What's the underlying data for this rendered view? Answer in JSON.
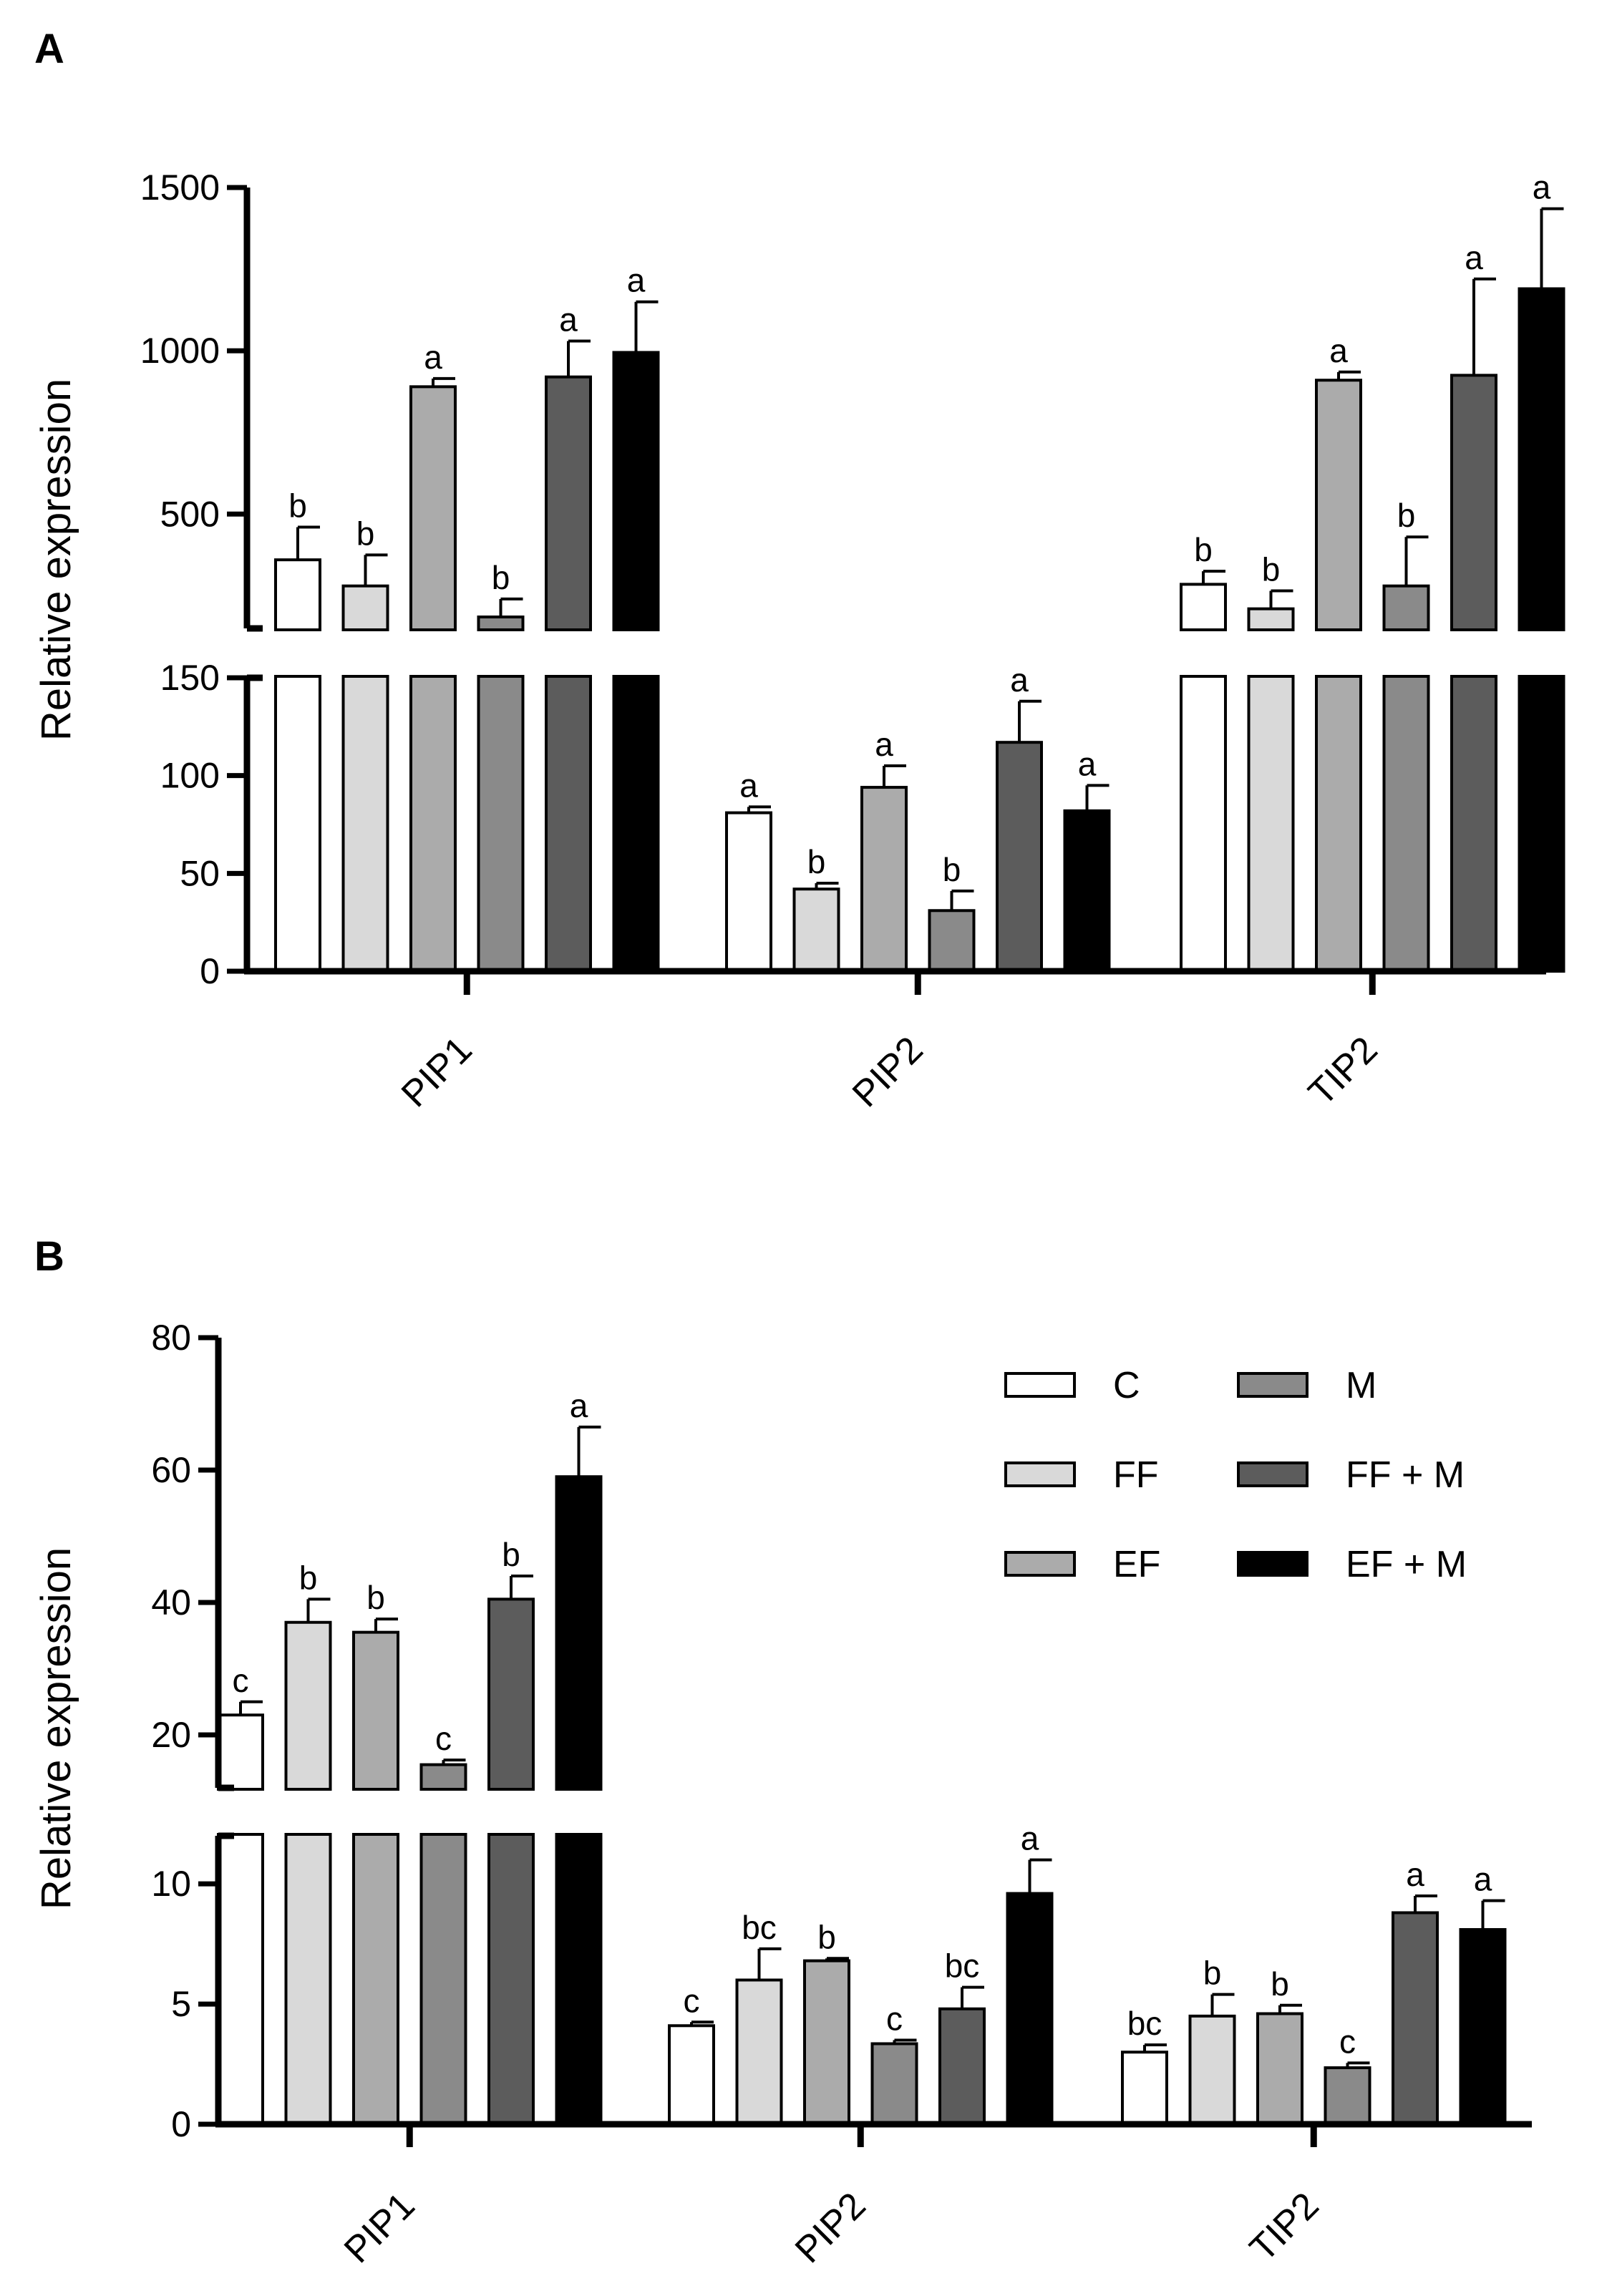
{
  "chart_data": [
    {
      "type": "bar",
      "panel": "A",
      "ylabel": "Relative expression",
      "categories": [
        "PIP1",
        "PIP2",
        "TIP2"
      ],
      "axis_break": true,
      "upper_ylim": [
        150,
        1500
      ],
      "upper_ticks": [
        500,
        1000,
        1500
      ],
      "lower_ylim": [
        0,
        150
      ],
      "lower_ticks": [
        0,
        50,
        100,
        150
      ],
      "series": [
        {
          "name": "C",
          "color": "#ffffff",
          "values": [
            360,
            81,
            285
          ],
          "errors": [
            100,
            3,
            40
          ],
          "letters": [
            "b",
            "a",
            "b"
          ]
        },
        {
          "name": "FF",
          "color": "#d9d9d9",
          "values": [
            280,
            42,
            210
          ],
          "errors": [
            95,
            3,
            55
          ],
          "letters": [
            "b",
            "b",
            "b"
          ]
        },
        {
          "name": "EF",
          "color": "#ababab",
          "values": [
            890,
            94,
            910
          ],
          "errors": [
            25,
            11,
            25
          ],
          "letters": [
            "a",
            "a",
            "a"
          ]
        },
        {
          "name": "M",
          "color": "#8a8a8a",
          "values": [
            185,
            31,
            280
          ],
          "errors": [
            55,
            10,
            150
          ],
          "letters": [
            "b",
            "b",
            "b"
          ]
        },
        {
          "name": "FF + M",
          "color": "#5c5c5c",
          "values": [
            920,
            117,
            925
          ],
          "errors": [
            110,
            21,
            295
          ],
          "letters": [
            "a",
            "a",
            "a"
          ]
        },
        {
          "name": "EF + M",
          "color": "#000000",
          "values": [
            995,
            82,
            1190
          ],
          "errors": [
            155,
            13,
            245
          ],
          "letters": [
            "a",
            "a",
            "a"
          ]
        }
      ]
    },
    {
      "type": "bar",
      "panel": "B",
      "ylabel": "Relative expression",
      "categories": [
        "PIP1",
        "PIP2",
        "TIP2"
      ],
      "axis_break": true,
      "upper_ylim": [
        12,
        80
      ],
      "upper_ticks": [
        20,
        40,
        60,
        80
      ],
      "lower_ylim": [
        0,
        12
      ],
      "lower_ticks": [
        0,
        5,
        10
      ],
      "series": [
        {
          "name": "C",
          "color": "#ffffff",
          "values": [
            23,
            4.1,
            3.0
          ],
          "errors": [
            2,
            0.15,
            0.3
          ],
          "letters": [
            "c",
            "c",
            "bc"
          ]
        },
        {
          "name": "FF",
          "color": "#d9d9d9",
          "values": [
            37,
            6.0,
            4.5
          ],
          "errors": [
            3.5,
            1.3,
            0.9
          ],
          "letters": [
            "b",
            "bc",
            "b"
          ]
        },
        {
          "name": "EF",
          "color": "#ababab",
          "values": [
            35.5,
            6.8,
            4.6
          ],
          "errors": [
            2,
            0.1,
            0.35
          ],
          "letters": [
            "b",
            "b",
            "b"
          ]
        },
        {
          "name": "M",
          "color": "#8a8a8a",
          "values": [
            15.5,
            3.35,
            2.35
          ],
          "errors": [
            0.7,
            0.15,
            0.2
          ],
          "letters": [
            "c",
            "c",
            "c"
          ]
        },
        {
          "name": "FF + M",
          "color": "#5c5c5c",
          "values": [
            40.5,
            4.8,
            8.8
          ],
          "errors": [
            3.5,
            0.9,
            0.7
          ],
          "letters": [
            "b",
            "bc",
            "a"
          ]
        },
        {
          "name": "EF + M",
          "color": "#000000",
          "values": [
            59,
            9.6,
            8.1
          ],
          "errors": [
            7.5,
            1.4,
            1.2
          ],
          "letters": [
            "a",
            "a",
            "a"
          ]
        }
      ]
    }
  ],
  "legend": {
    "placement": "top-right of panel B",
    "entries": [
      "C",
      "M",
      "FF",
      "FF + M",
      "EF",
      "EF + M"
    ]
  }
}
